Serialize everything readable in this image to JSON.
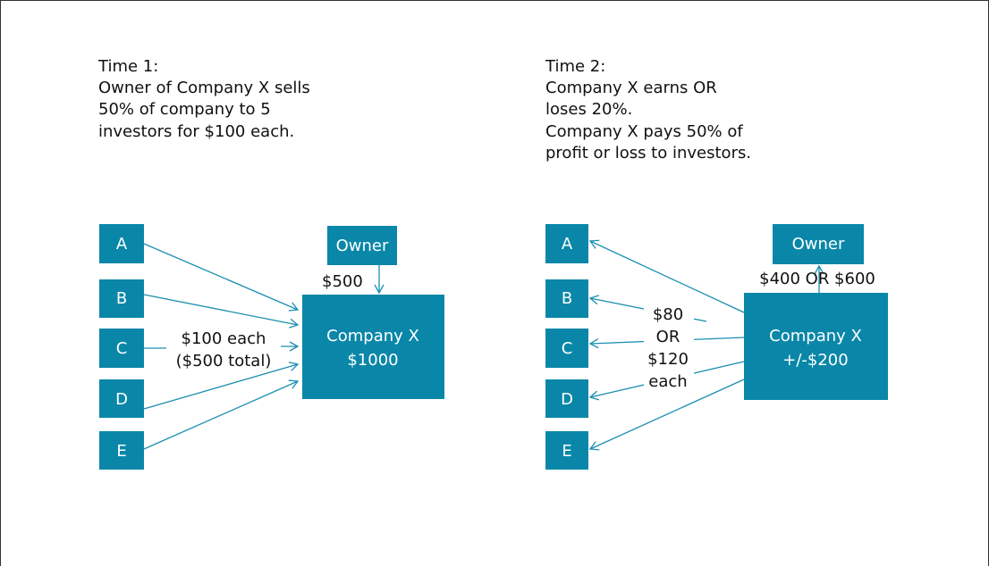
{
  "panels": [
    {
      "heading": "Time 1:",
      "description": [
        "Owner of Company X sells",
        "50% of company to 5",
        "investors for $100 each."
      ],
      "investors": [
        "A",
        "B",
        "C",
        "D",
        "E"
      ],
      "owner": "Owner",
      "company": [
        "Company X",
        "$1000"
      ],
      "owner_flow": "$500",
      "investor_flow": [
        "$100 each",
        "($500 total)"
      ]
    },
    {
      "heading": "Time 2:",
      "description": [
        "Company X earns OR",
        "loses 20%.",
        "Company X pays 50% of",
        "profit or loss to investors."
      ],
      "investors": [
        "A",
        "B",
        "C",
        "D",
        "E"
      ],
      "owner": "Owner",
      "company": [
        "Company X",
        "+/-$200"
      ],
      "owner_flow": "$400 OR $600",
      "investor_flow": [
        "$80",
        "OR",
        "$120",
        "each"
      ]
    }
  ]
}
